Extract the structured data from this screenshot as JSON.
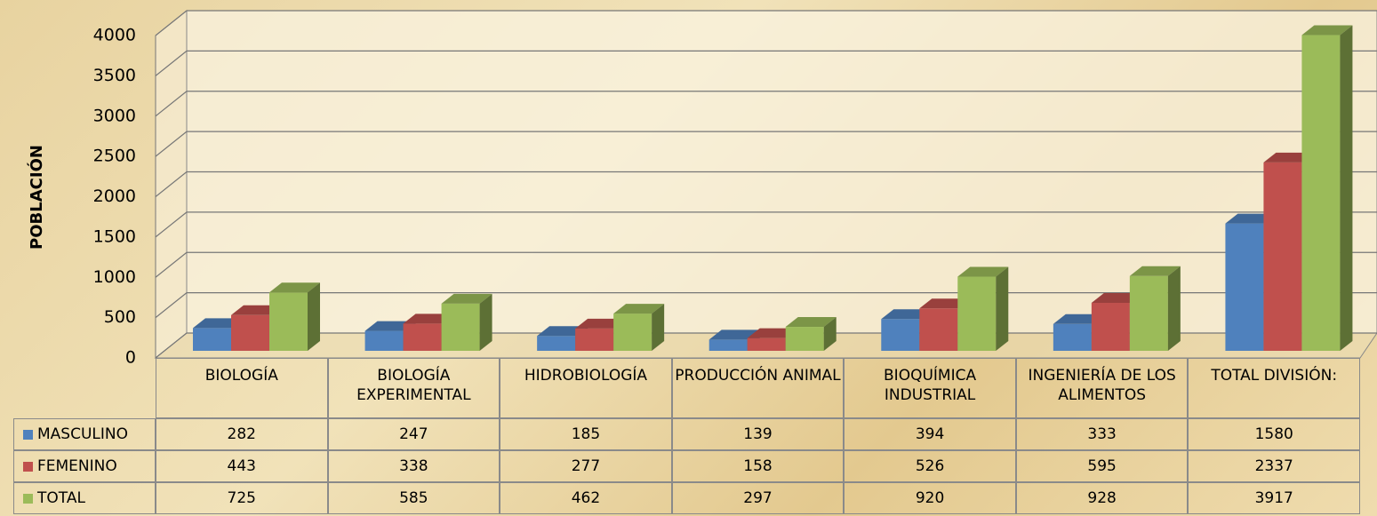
{
  "chart_data": {
    "type": "bar",
    "y_label": "POBLACIÓN",
    "categories": [
      "BIOLOGÍA",
      "BIOLOGÍA EXPERIMENTAL",
      "HIDROBIOLOGÍA",
      "PRODUCCIÓN ANIMAL",
      "BIOQUÍMICA INDUSTRIAL",
      "INGENIERÍA DE LOS ALIMENTOS",
      "TOTAL DIVISIÓN:"
    ],
    "series": [
      {
        "name": "MASCULINO",
        "color": "#4f81bd",
        "values": [
          282,
          247,
          185,
          139,
          394,
          333,
          1580
        ]
      },
      {
        "name": "FEMENINO",
        "color": "#c0504d",
        "values": [
          443,
          338,
          277,
          158,
          526,
          595,
          2337
        ]
      },
      {
        "name": "TOTAL",
        "color": "#9bbb59",
        "values": [
          725,
          585,
          462,
          297,
          920,
          928,
          3917
        ]
      }
    ],
    "ylim": [
      0,
      4000
    ],
    "yticks": [
      0,
      500,
      1000,
      1500,
      2000,
      2500,
      3000,
      3500,
      4000
    ],
    "grid": true
  }
}
